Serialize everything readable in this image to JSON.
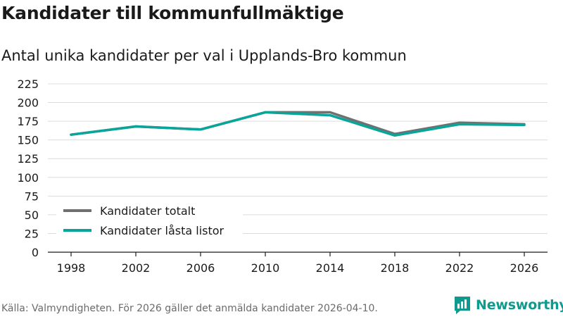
{
  "header": {
    "title": "Kandidater till kommunfullmäktige",
    "subtitle": "Antal unika kandidater per val i Upplands-Bro kommun"
  },
  "footer": {
    "source": "Källa: Valmyndigheten. För 2026 gäller det anmälda kandidater 2026-04-10."
  },
  "brand": {
    "name": "Newsworthy",
    "logo_icon": "bar-chart-speech-bubble-icon",
    "color": "#0f9a8e"
  },
  "chart_data": {
    "type": "line",
    "title": "Kandidater till kommunfullmäktige",
    "subtitle": "Antal unika kandidater per val i Upplands-Bro kommun",
    "xlabel": "",
    "ylabel": "",
    "x": [
      "1998",
      "2002",
      "2006",
      "2010",
      "2014",
      "2018",
      "2022",
      "2026"
    ],
    "ylim": [
      0,
      225
    ],
    "yticks": [
      0,
      25,
      50,
      75,
      100,
      125,
      150,
      175,
      200,
      225
    ],
    "grid": true,
    "legend_position": "bottom-left",
    "series": [
      {
        "name": "Kandidater totalt",
        "color": "#707070",
        "values": [
          157,
          168,
          164,
          187,
          187,
          158,
          173,
          171
        ]
      },
      {
        "name": "Kandidater låsta listor",
        "color": "#0aa59a",
        "values": [
          157,
          168,
          164,
          187,
          183,
          156,
          171,
          170
        ]
      }
    ]
  }
}
